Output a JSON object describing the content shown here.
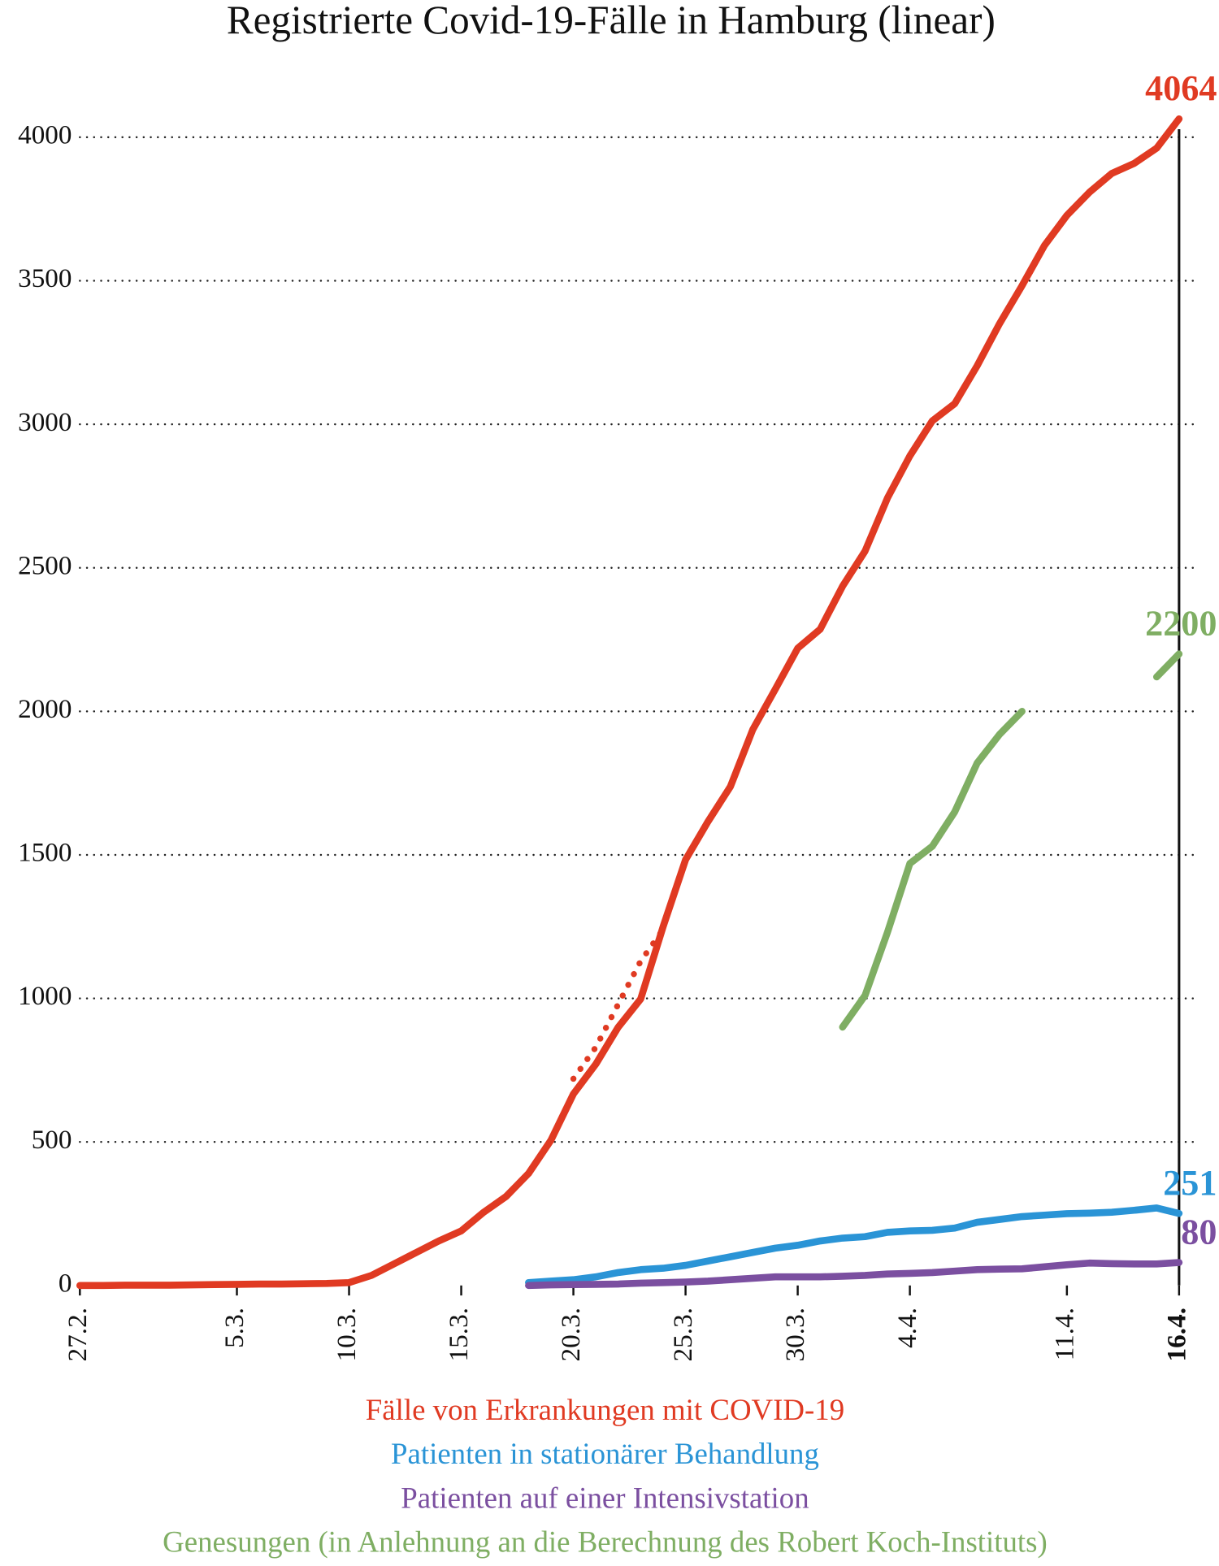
{
  "chart_data": {
    "type": "line",
    "title": "Registrierte Covid-19-Fälle in Hamburg (linear)",
    "categories": [
      "27.2.",
      null,
      null,
      null,
      null,
      null,
      null,
      "5.3.",
      null,
      null,
      null,
      null,
      "10.3.",
      null,
      null,
      null,
      null,
      "15.3.",
      null,
      null,
      null,
      null,
      "20.3.",
      null,
      null,
      null,
      null,
      "25.3.",
      null,
      null,
      null,
      null,
      "30.3.",
      null,
      null,
      null,
      null,
      "4.4.",
      null,
      null,
      null,
      null,
      null,
      null,
      "11.4.",
      null,
      null,
      null,
      null,
      "16.4."
    ],
    "ylim": [
      0,
      4000
    ],
    "yticks": [
      0,
      500,
      1000,
      1500,
      2000,
      2500,
      3000,
      3500,
      4000
    ],
    "grid": true,
    "series": [
      {
        "name": "Fälle von Erkrankungen mit COVID-19",
        "color": "#e03a22",
        "values": [
          0,
          0,
          1,
          1,
          1,
          2,
          3,
          4,
          5,
          5,
          6,
          7,
          10,
          35,
          75,
          115,
          155,
          190,
          255,
          310,
          390,
          506,
          667,
          771,
          900,
          998,
          1250,
          1483,
          1616,
          1738,
          1937,
          2077,
          2220,
          2286,
          2436,
          2558,
          2743,
          2890,
          3012,
          3072,
          3204,
          3351,
          3483,
          3623,
          3728,
          3808,
          3874,
          3909,
          3962,
          4064
        ]
      },
      {
        "name": "Patienten in stationärer Behandlung",
        "color": "#2a94d6",
        "values": [
          null,
          null,
          null,
          null,
          null,
          null,
          null,
          null,
          null,
          null,
          null,
          null,
          null,
          null,
          null,
          null,
          null,
          null,
          null,
          null,
          10,
          15,
          20,
          30,
          45,
          55,
          60,
          70,
          85,
          100,
          115,
          130,
          140,
          155,
          165,
          170,
          185,
          190,
          192,
          200,
          220,
          230,
          240,
          245,
          250,
          252,
          255,
          262,
          270,
          251
        ]
      },
      {
        "name": "Patienten auf einer Intensivstation",
        "color": "#7b4fa0",
        "values": [
          null,
          null,
          null,
          null,
          null,
          null,
          null,
          null,
          null,
          null,
          null,
          null,
          null,
          null,
          null,
          null,
          null,
          null,
          null,
          null,
          0,
          2,
          3,
          4,
          5,
          8,
          10,
          12,
          15,
          20,
          25,
          30,
          30,
          30,
          32,
          35,
          40,
          42,
          45,
          50,
          55,
          57,
          58,
          65,
          72,
          78,
          76,
          75,
          75,
          80
        ]
      },
      {
        "name": "Genesungen (in Anlehnung an die Berechnung des Robert Koch-Instituts)",
        "color": "#7fae63",
        "values": [
          null,
          null,
          null,
          null,
          null,
          null,
          null,
          null,
          null,
          null,
          null,
          null,
          null,
          null,
          null,
          null,
          null,
          null,
          null,
          null,
          null,
          null,
          null,
          null,
          null,
          null,
          null,
          null,
          null,
          null,
          null,
          null,
          null,
          null,
          900,
          1010,
          1230,
          1470,
          1530,
          1650,
          1820,
          1920,
          2000,
          null,
          null,
          null,
          null,
          null,
          2120,
          2200
        ]
      },
      {
        "color": "#e03a22",
        "dash": "dotted",
        "values": [
          null,
          null,
          null,
          null,
          null,
          null,
          null,
          null,
          null,
          null,
          null,
          null,
          null,
          null,
          null,
          null,
          null,
          null,
          null,
          null,
          null,
          null,
          720,
          830,
          980,
          1130,
          1240,
          null,
          null,
          null,
          null,
          null,
          null,
          null,
          null,
          null,
          null,
          null,
          null,
          null,
          null,
          null,
          null,
          null,
          null,
          null,
          null,
          null,
          null,
          null
        ]
      }
    ]
  }
}
